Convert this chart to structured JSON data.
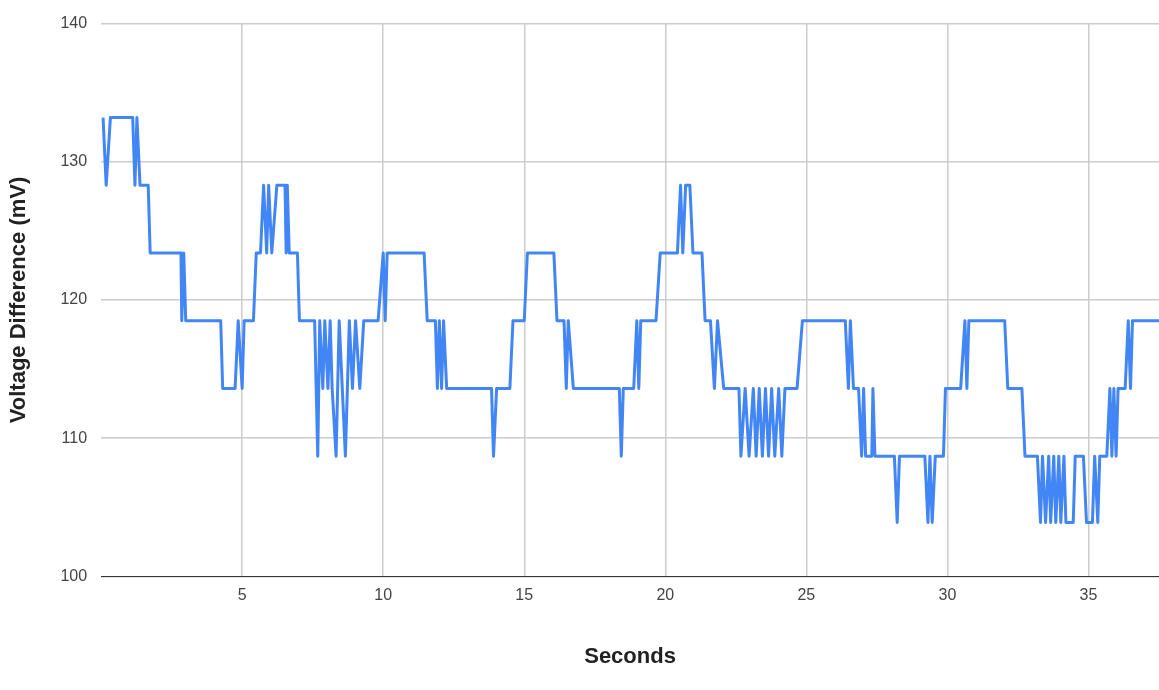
{
  "chart_data": {
    "type": "line",
    "xlabel": "Seconds",
    "ylabel": "Voltage Difference (mV)",
    "xlim": [
      0,
      37.5
    ],
    "xticks": [
      5,
      10,
      15,
      20,
      25,
      30,
      35
    ],
    "ylim": [
      100,
      140
    ],
    "yticks": [
      100,
      110,
      120,
      130,
      140
    ],
    "grid": true,
    "marker": "none",
    "line_style": "solid",
    "series": [
      {
        "color": "#4285f4",
        "x": [
          0.07,
          0.18,
          0.33,
          1.12,
          1.2,
          1.27,
          1.38,
          1.67,
          1.74,
          2.83,
          2.86,
          2.93,
          3.0,
          4.24,
          4.31,
          4.75,
          4.86,
          5.0,
          5.07,
          5.4,
          5.5,
          5.65,
          5.76,
          5.87,
          5.94,
          6.05,
          6.23,
          6.52,
          6.56,
          6.6,
          6.67,
          6.96,
          7.03,
          7.57,
          7.68,
          7.75,
          7.86,
          7.93,
          8.04,
          8.12,
          8.19,
          8.33,
          8.44,
          8.55,
          8.66,
          8.8,
          8.91,
          9.02,
          9.17,
          9.31,
          9.82,
          10.0,
          10.07,
          10.14,
          11.45,
          11.56,
          11.85,
          11.92,
          11.99,
          12.07,
          12.14,
          12.25,
          13.84,
          13.91,
          14.02,
          14.49,
          14.6,
          15.0,
          15.11,
          16.05,
          16.16,
          16.41,
          16.49,
          16.56,
          16.74,
          18.37,
          18.44,
          18.51,
          18.88,
          18.99,
          19.06,
          19.13,
          19.67,
          19.82,
          20.43,
          20.54,
          20.62,
          20.72,
          20.87,
          20.98,
          21.3,
          21.41,
          21.6,
          21.74,
          21.85,
          22.07,
          22.61,
          22.68,
          22.83,
          22.97,
          23.12,
          23.22,
          23.33,
          23.44,
          23.55,
          23.66,
          23.77,
          23.88,
          24.02,
          24.13,
          24.24,
          24.67,
          24.86,
          26.38,
          26.49,
          26.56,
          26.67,
          26.85,
          26.96,
          27.03,
          27.1,
          27.32,
          27.36,
          27.43,
          28.12,
          28.22,
          28.3,
          29.2,
          29.31,
          29.38,
          29.46,
          29.57,
          29.86,
          29.93,
          30.47,
          30.62,
          30.69,
          30.76,
          32.03,
          32.14,
          32.64,
          32.75,
          33.19,
          33.3,
          33.37,
          33.48,
          33.59,
          33.66,
          33.77,
          33.84,
          33.95,
          34.02,
          34.13,
          34.2,
          34.46,
          34.53,
          34.82,
          34.93,
          35.14,
          35.22,
          35.33,
          35.4,
          35.65,
          35.76,
          35.83,
          35.9,
          35.98,
          36.05,
          36.3,
          36.41,
          36.49,
          36.56,
          37.5
        ],
        "values": [
          133.2,
          128.3,
          133.2,
          133.2,
          128.3,
          133.2,
          128.3,
          128.3,
          123.4,
          123.4,
          118.5,
          123.4,
          118.5,
          118.5,
          113.6,
          113.6,
          118.5,
          113.6,
          118.5,
          118.5,
          123.4,
          123.4,
          128.3,
          123.4,
          128.3,
          123.4,
          128.3,
          128.3,
          123.4,
          128.3,
          123.4,
          123.4,
          118.5,
          118.5,
          108.7,
          118.5,
          113.6,
          118.5,
          113.6,
          118.5,
          113.6,
          108.7,
          118.5,
          113.6,
          108.7,
          118.5,
          113.6,
          118.5,
          113.6,
          118.5,
          118.5,
          123.4,
          118.5,
          123.4,
          123.4,
          118.5,
          118.5,
          113.6,
          118.5,
          113.6,
          118.5,
          113.6,
          113.6,
          108.7,
          113.6,
          113.6,
          118.5,
          118.5,
          123.4,
          123.4,
          118.5,
          118.5,
          113.6,
          118.5,
          113.6,
          113.6,
          108.7,
          113.6,
          113.6,
          118.5,
          113.6,
          118.5,
          118.5,
          123.4,
          123.4,
          128.3,
          123.4,
          128.3,
          128.3,
          123.4,
          123.4,
          118.5,
          118.5,
          113.6,
          118.5,
          113.6,
          113.6,
          108.7,
          113.6,
          108.7,
          113.6,
          108.7,
          113.6,
          108.7,
          113.6,
          108.7,
          113.6,
          108.7,
          113.6,
          108.7,
          113.6,
          113.6,
          118.5,
          118.5,
          113.6,
          118.5,
          113.6,
          113.6,
          108.7,
          113.6,
          108.7,
          108.7,
          113.6,
          108.7,
          108.7,
          103.9,
          108.7,
          108.7,
          103.9,
          108.7,
          103.9,
          108.7,
          108.7,
          113.6,
          113.6,
          118.5,
          113.6,
          118.5,
          118.5,
          113.6,
          113.6,
          108.7,
          108.7,
          103.9,
          108.7,
          103.9,
          108.7,
          103.9,
          108.7,
          103.9,
          108.7,
          103.9,
          108.7,
          103.9,
          103.9,
          108.7,
          108.7,
          103.9,
          103.9,
          108.7,
          103.9,
          108.7,
          108.7,
          113.6,
          108.7,
          113.6,
          108.7,
          113.6,
          113.6,
          118.5,
          113.6,
          118.5,
          118.5
        ]
      }
    ]
  }
}
